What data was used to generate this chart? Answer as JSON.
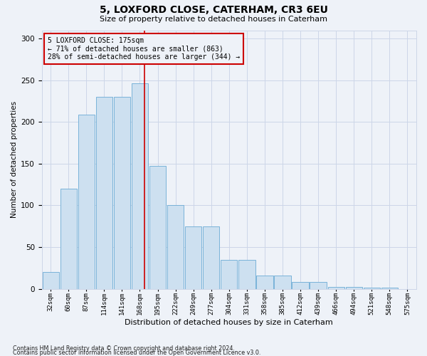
{
  "title1": "5, LOXFORD CLOSE, CATERHAM, CR3 6EU",
  "title2": "Size of property relative to detached houses in Caterham",
  "xlabel": "Distribution of detached houses by size in Caterham",
  "ylabel": "Number of detached properties",
  "footer1": "Contains HM Land Registry data © Crown copyright and database right 2024.",
  "footer2": "Contains public sector information licensed under the Open Government Licence v3.0.",
  "bin_labels": [
    "32sqm",
    "60sqm",
    "87sqm",
    "114sqm",
    "141sqm",
    "168sqm",
    "195sqm",
    "222sqm",
    "249sqm",
    "277sqm",
    "304sqm",
    "331sqm",
    "358sqm",
    "385sqm",
    "412sqm",
    "439sqm",
    "466sqm",
    "494sqm",
    "521sqm",
    "548sqm",
    "575sqm"
  ],
  "bar_values": [
    20,
    120,
    209,
    230,
    230,
    246,
    147,
    100,
    75,
    75,
    35,
    35,
    16,
    16,
    8,
    8,
    2,
    2,
    1,
    1,
    0
  ],
  "bar_color": "#cde0f0",
  "bar_edgecolor": "#6aaad4",
  "property_line_x": 5.26,
  "property_line_color": "#cc0000",
  "annotation_line1": "5 LOXFORD CLOSE: 175sqm",
  "annotation_line2": "← 71% of detached houses are smaller (863)",
  "annotation_line3": "28% of semi-detached houses are larger (344) →",
  "annotation_box_color": "#cc0000",
  "ylim": [
    0,
    310
  ],
  "yticks": [
    0,
    50,
    100,
    150,
    200,
    250,
    300
  ],
  "grid_color": "#ccd6e8",
  "bg_color": "#eef2f8"
}
